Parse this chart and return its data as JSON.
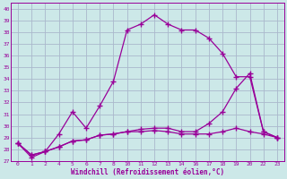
{
  "bg_color": "#cce8e8",
  "grid_color": "#aab8cc",
  "line_color": "#990099",
  "ylim": [
    27,
    40.5
  ],
  "yticks": [
    27,
    28,
    29,
    30,
    31,
    32,
    33,
    34,
    35,
    36,
    37,
    38,
    39,
    40
  ],
  "xlabel": "Windchill (Refroidissement éolien,°C)",
  "tick_labels": [
    "0",
    "1",
    "2",
    "4",
    "5",
    "6",
    "7",
    "8",
    "10",
    "11",
    "12",
    "13",
    "14",
    "16",
    "17",
    "18",
    "19",
    "20",
    "22",
    "23"
  ],
  "line1_y": [
    28.5,
    27.3,
    27.8,
    29.3,
    31.2,
    29.8,
    31.7,
    33.8,
    38.2,
    38.7,
    39.5,
    38.7,
    38.2,
    38.2,
    37.5,
    36.2,
    34.2,
    34.2,
    29.5,
    29.0
  ],
  "line2_y": [
    28.5,
    27.5,
    27.8,
    28.2,
    28.7,
    28.8,
    29.2,
    29.3,
    29.5,
    29.7,
    29.8,
    29.8,
    29.5,
    29.5,
    30.2,
    31.2,
    33.2,
    34.5,
    29.5,
    29.0
  ],
  "line3_y": [
    28.5,
    27.5,
    27.8,
    28.2,
    28.7,
    28.8,
    29.2,
    29.3,
    29.5,
    29.5,
    29.6,
    29.5,
    29.3,
    29.3,
    29.3,
    29.5,
    29.8,
    29.5,
    29.3,
    29.0
  ]
}
